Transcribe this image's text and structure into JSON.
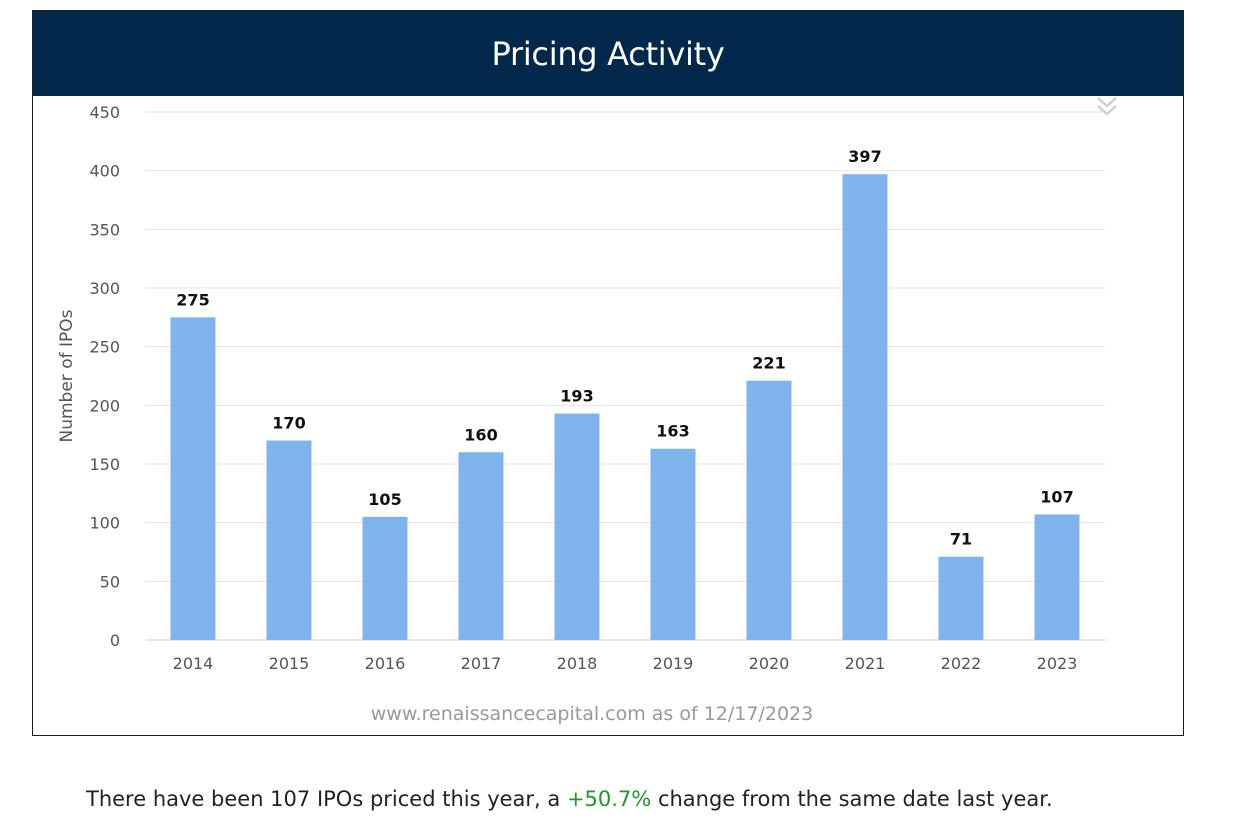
{
  "header": {
    "title": "Pricing Activity"
  },
  "colors": {
    "header_bg": "#02284b",
    "bar": "#7cb4eb",
    "grid": "#e6e6e6",
    "axis_text": "#555555",
    "positive": "#1f9a25"
  },
  "menu": {
    "icon": "double-chevron-down-icon"
  },
  "chart_data": {
    "type": "bar",
    "title": "",
    "xlabel": "",
    "ylabel": "Number of IPOs",
    "categories": [
      "2014",
      "2015",
      "2016",
      "2017",
      "2018",
      "2019",
      "2020",
      "2021",
      "2022",
      "2023"
    ],
    "values": [
      275,
      170,
      105,
      160,
      193,
      163,
      221,
      397,
      71,
      107
    ],
    "ylim": [
      0,
      450
    ],
    "yticks": [
      0,
      50,
      100,
      150,
      200,
      250,
      300,
      350,
      400,
      450
    ],
    "grid": true,
    "data_labels": true,
    "credits": "www.renaissancecapital.com as of 12/17/2023"
  },
  "footer": {
    "prefix": "There have been 107 IPOs priced this year, a ",
    "change": "+50.7%",
    "suffix": " change from the same date last year."
  }
}
